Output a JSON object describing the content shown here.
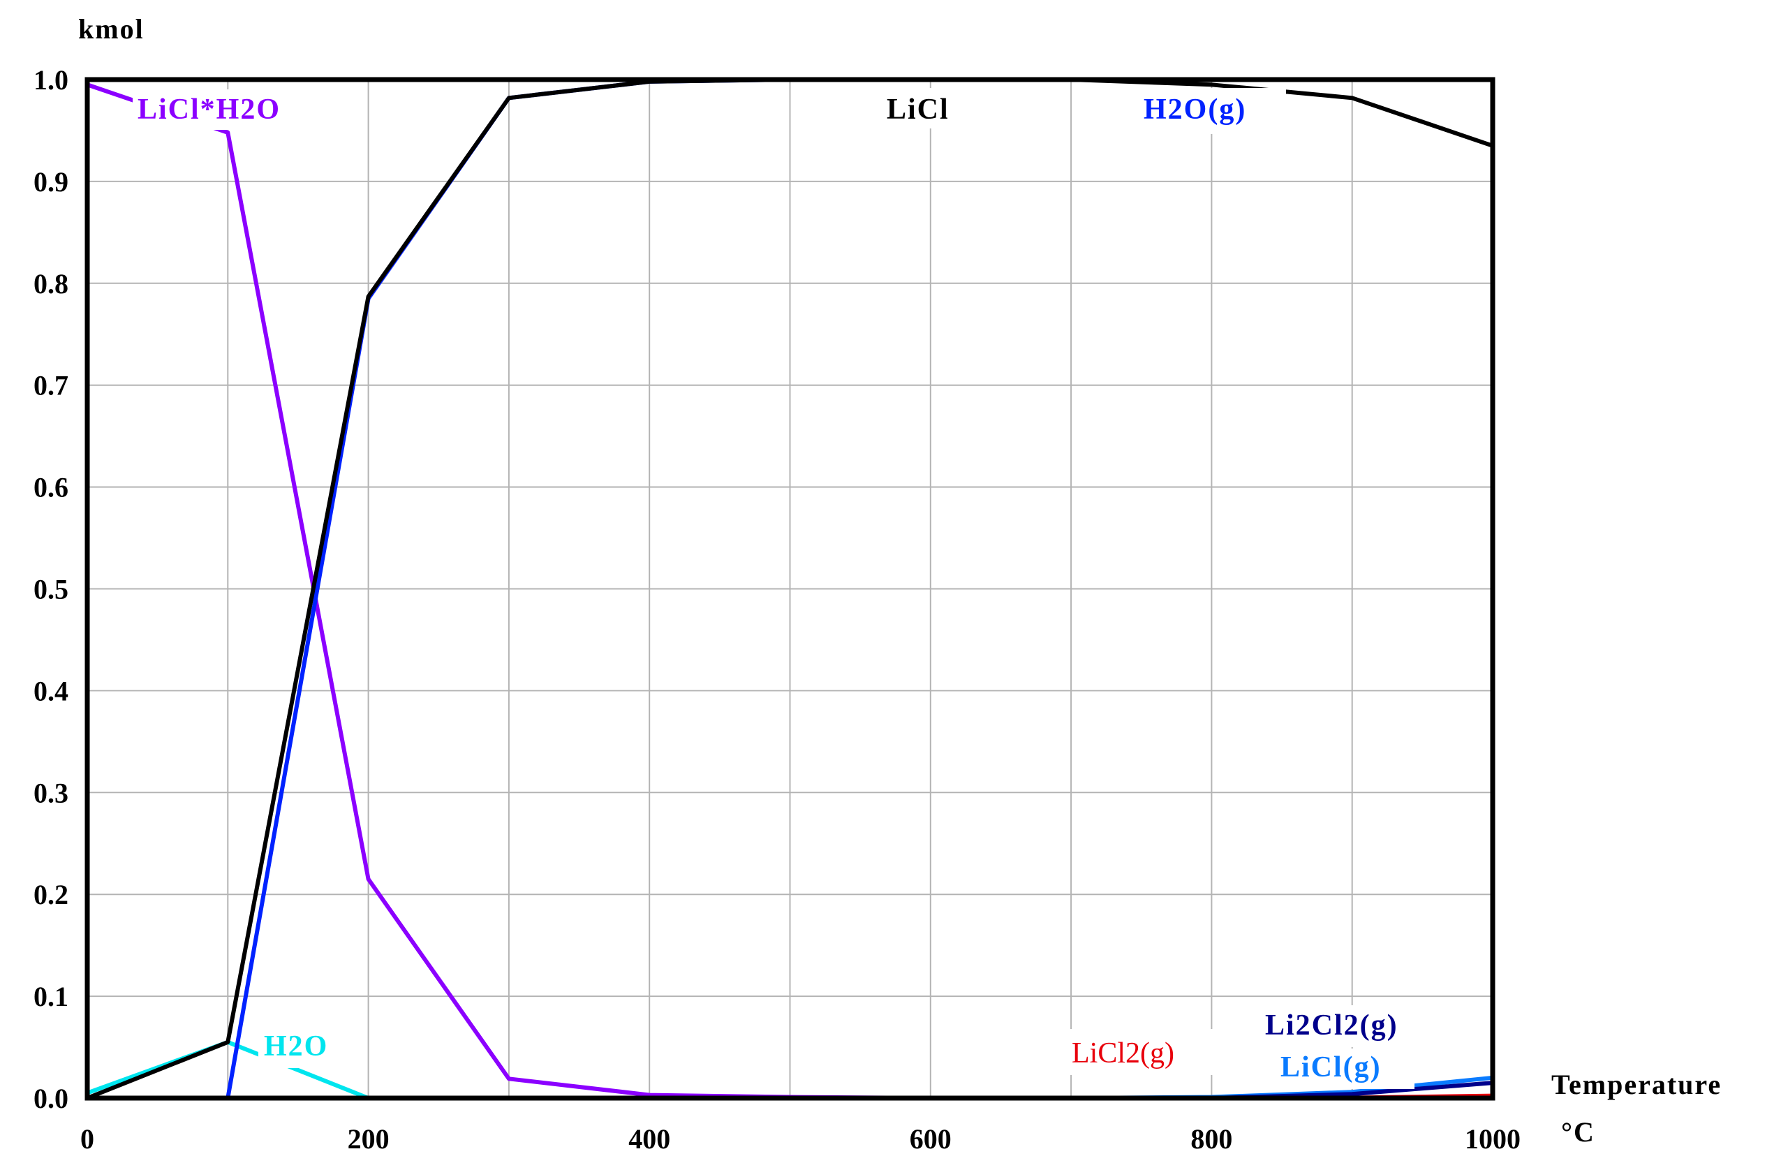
{
  "chart_data": {
    "type": "line",
    "ylabel": "kmol",
    "xlabel": "Temperature",
    "xunit": "°C",
    "xlim": [
      0,
      1000
    ],
    "ylim": [
      0,
      1.0
    ],
    "xticks": [
      "0",
      "200",
      "400",
      "600",
      "800",
      "1000"
    ],
    "yticks": [
      "0.0",
      "0.1",
      "0.2",
      "0.3",
      "0.4",
      "0.5",
      "0.6",
      "0.7",
      "0.8",
      "0.9",
      "1.0"
    ],
    "grid": true,
    "colors": {
      "LiCl*H2O": "#8b00ff",
      "LiCl": "#000000",
      "H2O(g)": "#0022ff",
      "H2O": "#00e5ee",
      "LiCl2(g)": "#e8000b",
      "Li2Cl2(g)": "#00008b",
      "LiCl(g)": "#0a7bff"
    },
    "series": [
      {
        "name": "LiCl*H2O",
        "x": [
          0,
          100,
          200,
          300,
          400,
          500,
          600,
          700,
          800,
          900,
          1000
        ],
        "values": [
          0.995,
          0.948,
          0.215,
          0.019,
          0.003,
          0.001,
          0.0,
          0.0,
          0.0,
          0.0,
          0.0
        ]
      },
      {
        "name": "LiCl",
        "x": [
          0,
          100,
          200,
          300,
          400,
          500,
          600,
          700,
          800,
          900,
          1000
        ],
        "values": [
          0.0,
          0.055,
          0.787,
          0.982,
          0.998,
          1.0,
          1.0,
          1.0,
          0.995,
          0.982,
          0.935
        ]
      },
      {
        "name": "H2O(g)",
        "x": [
          0,
          100,
          200,
          300,
          400,
          500,
          600,
          700,
          800,
          900,
          1000
        ],
        "values": [
          0.0,
          0.0,
          0.785,
          0.982,
          0.998,
          1.0,
          1.0,
          1.0,
          1.0,
          1.0,
          1.0
        ]
      },
      {
        "name": "H2O",
        "x": [
          0,
          100,
          200,
          300,
          400,
          500,
          600,
          700,
          800,
          900,
          1000
        ],
        "values": [
          0.005,
          0.055,
          0.0,
          0.0,
          0.0,
          0.0,
          0.0,
          0.0,
          0.0,
          0.0,
          0.0
        ]
      },
      {
        "name": "LiCl2(g)",
        "x": [
          0,
          100,
          200,
          300,
          400,
          500,
          600,
          700,
          800,
          900,
          1000
        ],
        "values": [
          0.0,
          0.0,
          0.0,
          0.0,
          0.0,
          0.0,
          0.0,
          0.0,
          0.0,
          0.0,
          0.002
        ]
      },
      {
        "name": "Li2Cl2(g)",
        "x": [
          0,
          100,
          200,
          300,
          400,
          500,
          600,
          700,
          800,
          900,
          1000
        ],
        "values": [
          0.0,
          0.0,
          0.0,
          0.0,
          0.0,
          0.0,
          0.0,
          0.0,
          0.0,
          0.004,
          0.015
        ]
      },
      {
        "name": "LiCl(g)",
        "x": [
          0,
          100,
          200,
          300,
          400,
          500,
          600,
          700,
          800,
          900,
          1000
        ],
        "values": [
          0.0,
          0.0,
          0.0,
          0.0,
          0.0,
          0.0,
          0.0,
          0.0,
          0.001,
          0.006,
          0.02
        ]
      }
    ]
  }
}
